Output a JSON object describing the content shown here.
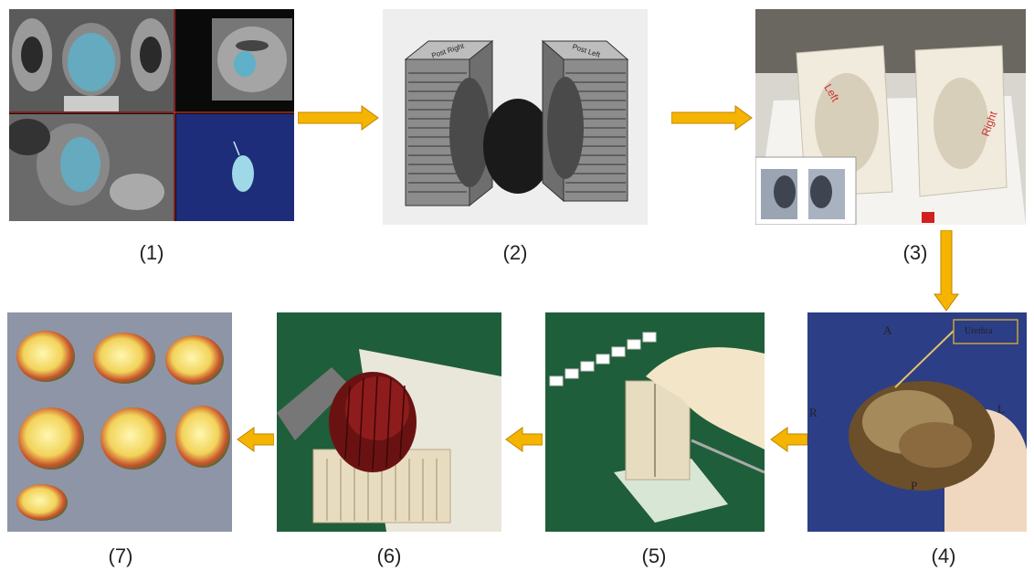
{
  "panels": [
    {
      "id": "1",
      "label": "(1)",
      "content": "MRI slices with segmented prostate (blue) and 3D render"
    },
    {
      "id": "2",
      "label": "(2)",
      "content": "3D mold model with prostate in the middle"
    },
    {
      "id": "3",
      "label": "(3)",
      "content": "3D-printed mold halves"
    },
    {
      "id": "4",
      "label": "(4)",
      "content": "Excised prostate specimen with orientation"
    },
    {
      "id": "5",
      "label": "(5)",
      "content": "Specimen placed in mold being sliced"
    },
    {
      "id": "6",
      "label": "(6)",
      "content": "Sliced prostate in slotted mold"
    },
    {
      "id": "7",
      "label": "(7)",
      "content": "Whole-mount stained sections"
    }
  ],
  "mold_text": {
    "left_block": "Post Right",
    "right_block": "Post Left"
  },
  "specimen_annotations": {
    "anterior": "A",
    "posterior": "P",
    "right": "R",
    "left": "L",
    "urethra": "Urethra"
  },
  "colors": {
    "arrow": "#f5b400",
    "arrow_stroke": "#c08400",
    "mri_bg": "#1c1c1c",
    "segmentation": "#5fb0c8",
    "render_bg": "#1e2d7a",
    "gloves": "#f3e6c8",
    "green_board": "#1f5e3a"
  }
}
